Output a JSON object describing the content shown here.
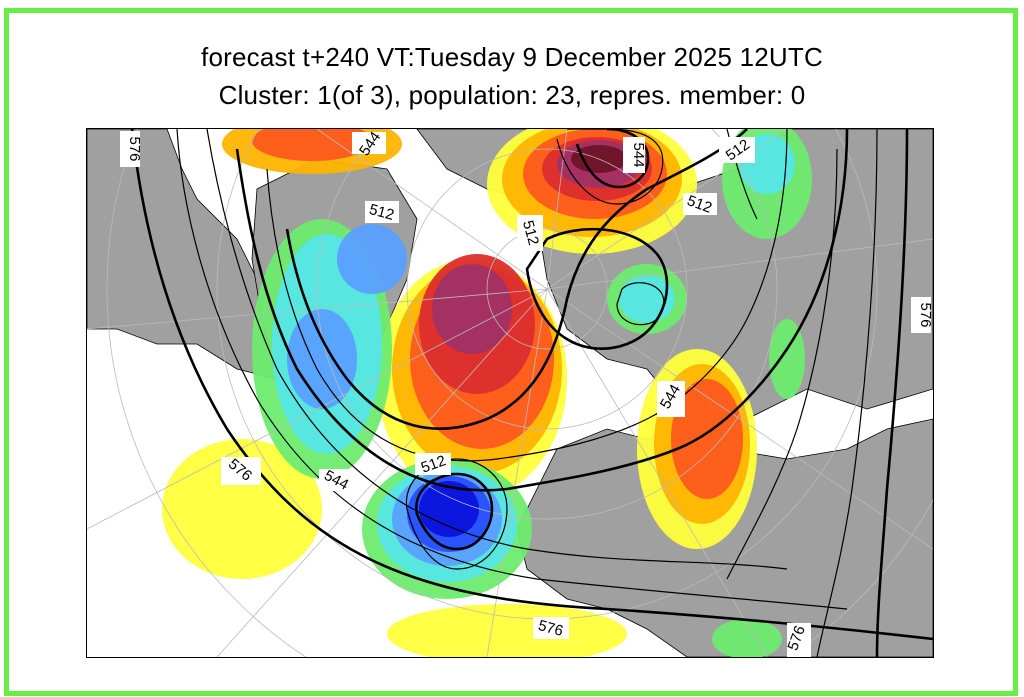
{
  "title": {
    "line1": "forecast t+240 VT:Tuesday 9 December 2025 12UTC",
    "line2": "Cluster: 1(of 3), population: 23, repres. member: 0"
  },
  "map": {
    "contour_labels": {
      "c576_tl": "576",
      "c544_top": "544",
      "c544_peak": "544",
      "c512_tr": "512",
      "c512_right": "512",
      "c512_west": "512",
      "c512_center": "512",
      "c576_right": "576",
      "c544_east": "544",
      "c576_atl": "576",
      "c544_atl": "544",
      "c512_low": "512",
      "c576_bottom": "576",
      "c576_br": "576"
    },
    "colors": {
      "frame": "#66ee44",
      "land": "#a0a0a0",
      "sea": "#ffffff",
      "anomaly_pos": [
        "#ffff3c",
        "#ffb400",
        "#ff5a1e",
        "#dc2d2d",
        "#a03264",
        "#6e1428"
      ],
      "anomaly_neg": [
        "#6eeb6e",
        "#55e6e6",
        "#5aa0ff",
        "#2850ff",
        "#0a14dc"
      ]
    }
  }
}
